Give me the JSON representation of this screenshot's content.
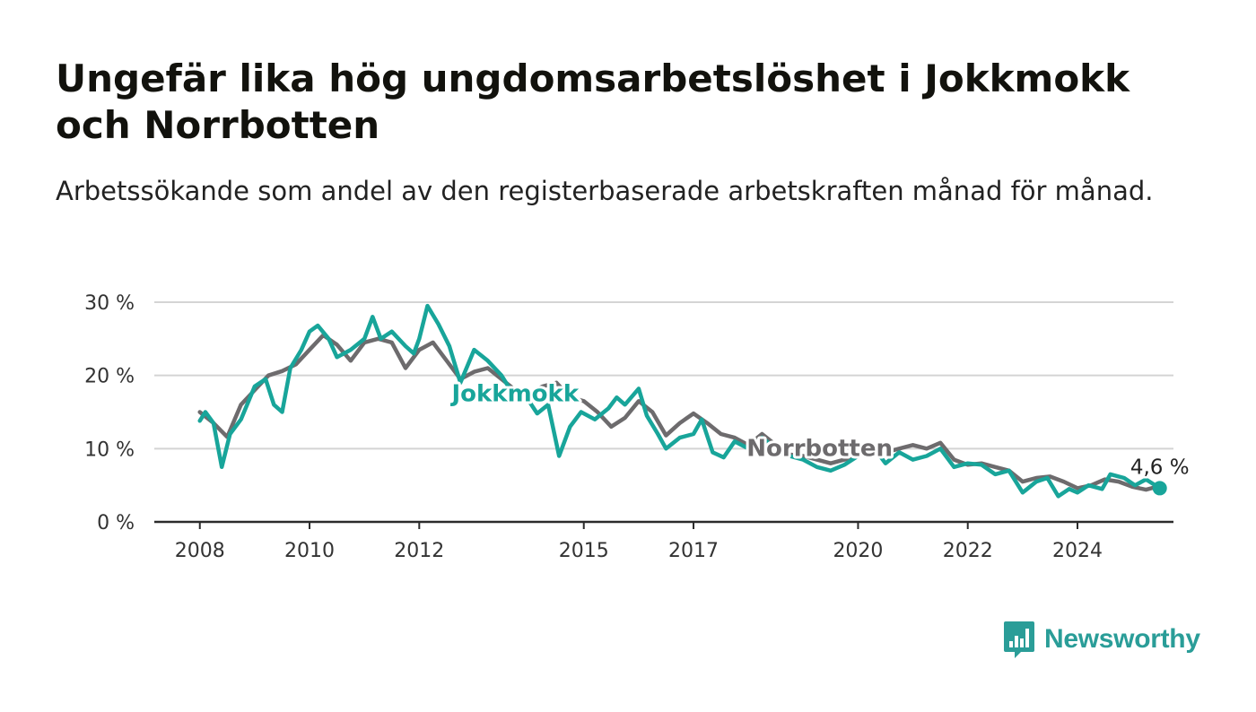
{
  "chart_data": {
    "type": "line",
    "title": "Ungefär lika hög ungdomsarbetslöshet i Jokkmokk och Norrbotten",
    "subtitle": "Arbetssökande som andel av den registerbaserade arbetskraften månad för månad.",
    "y_ticks": [
      "0 %",
      "10 %",
      "20 %",
      "30 %"
    ],
    "ylim": [
      0,
      30
    ],
    "x_ticks": [
      "2008",
      "2010",
      "2012",
      "2015",
      "2017",
      "2020",
      "2022",
      "2024"
    ],
    "xlim": [
      2007.17,
      2025.75
    ],
    "grid": true,
    "end_label": "4,6 %",
    "series": [
      {
        "name": "Norrbotten",
        "color": "#6d6b6d",
        "points": [
          [
            2008.0,
            15.0
          ],
          [
            2008.25,
            13.5
          ],
          [
            2008.5,
            11.6
          ],
          [
            2008.75,
            16.0
          ],
          [
            2009.0,
            18.0
          ],
          [
            2009.25,
            20.0
          ],
          [
            2009.5,
            20.6
          ],
          [
            2009.75,
            21.5
          ],
          [
            2010.0,
            23.5
          ],
          [
            2010.25,
            25.5
          ],
          [
            2010.5,
            24.2
          ],
          [
            2010.75,
            22.0
          ],
          [
            2011.0,
            24.5
          ],
          [
            2011.25,
            25.0
          ],
          [
            2011.5,
            24.5
          ],
          [
            2011.75,
            21.0
          ],
          [
            2012.0,
            23.5
          ],
          [
            2012.25,
            24.5
          ],
          [
            2012.5,
            22.0
          ],
          [
            2012.75,
            19.5
          ],
          [
            2013.0,
            20.5
          ],
          [
            2013.25,
            21.0
          ],
          [
            2013.5,
            19.5
          ],
          [
            2013.75,
            18.0
          ],
          [
            2014.0,
            17.5
          ],
          [
            2014.25,
            18.5
          ],
          [
            2014.5,
            19.0
          ],
          [
            2014.75,
            17.0
          ],
          [
            2015.0,
            16.5
          ],
          [
            2015.25,
            15.0
          ],
          [
            2015.5,
            13.0
          ],
          [
            2015.75,
            14.2
          ],
          [
            2016.0,
            16.5
          ],
          [
            2016.25,
            15.0
          ],
          [
            2016.5,
            11.8
          ],
          [
            2016.75,
            13.5
          ],
          [
            2017.0,
            14.8
          ],
          [
            2017.25,
            13.5
          ],
          [
            2017.5,
            12.0
          ],
          [
            2017.75,
            11.5
          ],
          [
            2018.0,
            10.5
          ],
          [
            2018.25,
            12.0
          ],
          [
            2018.5,
            10.5
          ],
          [
            2018.75,
            9.2
          ],
          [
            2019.0,
            9.0
          ],
          [
            2019.25,
            8.5
          ],
          [
            2019.5,
            8.0
          ],
          [
            2019.75,
            8.5
          ],
          [
            2020.0,
            9.0
          ],
          [
            2020.25,
            10.5
          ],
          [
            2020.5,
            9.5
          ],
          [
            2020.75,
            10.0
          ],
          [
            2021.0,
            10.5
          ],
          [
            2021.25,
            10.0
          ],
          [
            2021.5,
            10.8
          ],
          [
            2021.75,
            8.5
          ],
          [
            2022.0,
            7.8
          ],
          [
            2022.25,
            8.0
          ],
          [
            2022.5,
            7.5
          ],
          [
            2022.75,
            7.0
          ],
          [
            2023.0,
            5.5
          ],
          [
            2023.25,
            6.0
          ],
          [
            2023.5,
            6.2
          ],
          [
            2023.75,
            5.5
          ],
          [
            2024.0,
            4.6
          ],
          [
            2024.25,
            5.0
          ],
          [
            2024.5,
            5.8
          ],
          [
            2024.75,
            5.5
          ],
          [
            2025.0,
            4.8
          ],
          [
            2025.25,
            4.4
          ],
          [
            2025.5,
            4.9
          ]
        ]
      },
      {
        "name": "Jokkmokk",
        "color": "#18a59a",
        "points": [
          [
            2008.0,
            13.8
          ],
          [
            2008.1,
            15.0
          ],
          [
            2008.25,
            13.5
          ],
          [
            2008.4,
            7.5
          ],
          [
            2008.55,
            12.0
          ],
          [
            2008.75,
            14.0
          ],
          [
            2009.0,
            18.5
          ],
          [
            2009.2,
            19.5
          ],
          [
            2009.35,
            16.0
          ],
          [
            2009.5,
            15.0
          ],
          [
            2009.65,
            21.0
          ],
          [
            2009.85,
            23.5
          ],
          [
            2010.0,
            26.0
          ],
          [
            2010.15,
            26.8
          ],
          [
            2010.35,
            25.0
          ],
          [
            2010.5,
            22.5
          ],
          [
            2010.75,
            23.5
          ],
          [
            2011.0,
            25.0
          ],
          [
            2011.15,
            28.0
          ],
          [
            2011.3,
            25.0
          ],
          [
            2011.5,
            26.0
          ],
          [
            2011.75,
            24.0
          ],
          [
            2011.9,
            23.0
          ],
          [
            2012.0,
            25.0
          ],
          [
            2012.15,
            29.5
          ],
          [
            2012.35,
            27.0
          ],
          [
            2012.55,
            24.0
          ],
          [
            2012.75,
            19.0
          ],
          [
            2013.0,
            23.5
          ],
          [
            2013.25,
            22.0
          ],
          [
            2013.5,
            20.0
          ],
          [
            2013.75,
            17.0
          ],
          [
            2014.0,
            16.5
          ],
          [
            2014.15,
            14.8
          ],
          [
            2014.35,
            16.0
          ],
          [
            2014.55,
            9.0
          ],
          [
            2014.75,
            13.0
          ],
          [
            2014.95,
            15.0
          ],
          [
            2015.2,
            14.0
          ],
          [
            2015.45,
            15.5
          ],
          [
            2015.6,
            17.0
          ],
          [
            2015.75,
            16.0
          ],
          [
            2016.0,
            18.2
          ],
          [
            2016.15,
            14.5
          ],
          [
            2016.35,
            12.0
          ],
          [
            2016.5,
            10.0
          ],
          [
            2016.75,
            11.5
          ],
          [
            2017.0,
            12.0
          ],
          [
            2017.15,
            14.0
          ],
          [
            2017.35,
            9.5
          ],
          [
            2017.55,
            8.8
          ],
          [
            2017.75,
            11.0
          ],
          [
            2018.0,
            10.0
          ],
          [
            2018.25,
            11.5
          ],
          [
            2018.5,
            10.0
          ],
          [
            2018.75,
            9.0
          ],
          [
            2019.0,
            8.5
          ],
          [
            2019.25,
            7.5
          ],
          [
            2019.5,
            7.0
          ],
          [
            2019.75,
            7.8
          ],
          [
            2020.0,
            9.0
          ],
          [
            2020.25,
            10.5
          ],
          [
            2020.5,
            8.0
          ],
          [
            2020.75,
            9.5
          ],
          [
            2021.0,
            8.5
          ],
          [
            2021.25,
            9.0
          ],
          [
            2021.5,
            10.0
          ],
          [
            2021.75,
            7.5
          ],
          [
            2022.0,
            8.0
          ],
          [
            2022.25,
            7.8
          ],
          [
            2022.5,
            6.5
          ],
          [
            2022.75,
            7.0
          ],
          [
            2023.0,
            4.0
          ],
          [
            2023.25,
            5.5
          ],
          [
            2023.45,
            6.0
          ],
          [
            2023.65,
            3.5
          ],
          [
            2023.85,
            4.5
          ],
          [
            2024.0,
            4.0
          ],
          [
            2024.2,
            5.0
          ],
          [
            2024.45,
            4.5
          ],
          [
            2024.6,
            6.5
          ],
          [
            2024.85,
            6.0
          ],
          [
            2025.05,
            5.0
          ],
          [
            2025.25,
            5.8
          ],
          [
            2025.5,
            4.6
          ]
        ]
      }
    ]
  },
  "brand": {
    "name": "Newsworthy",
    "color": "#2a9d98"
  }
}
